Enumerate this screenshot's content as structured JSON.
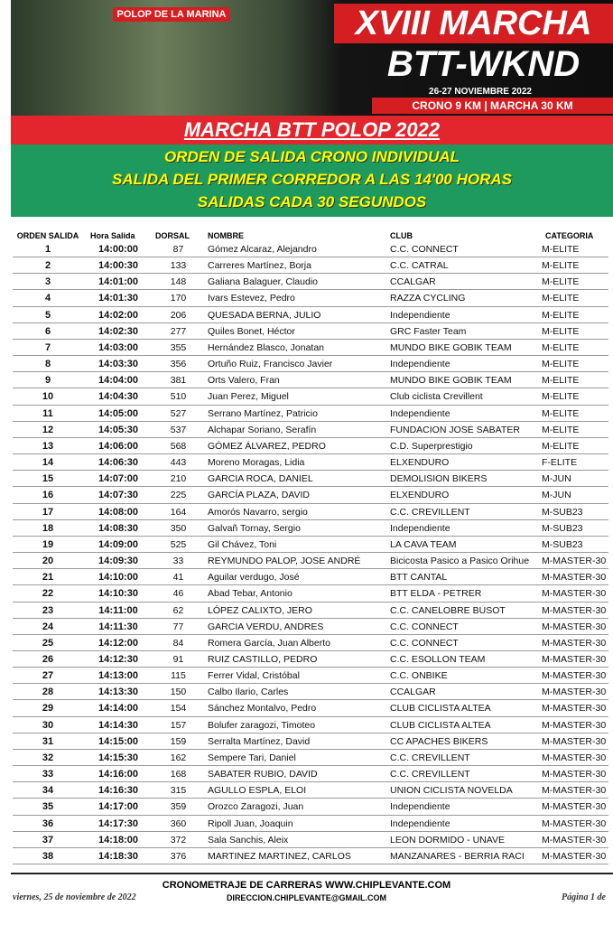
{
  "banner": {
    "place": "POLOP DE LA MARINA",
    "line1": "XVIII MARCHA",
    "line2": "BTT-WKND",
    "dates": "26-27 NOVIEMBRE 2022",
    "distances": "CRONO 9 KM | MARCHA 30 KM"
  },
  "title": "MARCHA BTT POLOP 2022",
  "subtitle": [
    "ORDEN DE SALIDA CRONO INDIVIDUAL",
    "SALIDA DEL PRIMER CORREDOR A LAS 14'00 HORAS",
    "SALIDAS CADA 30 SEGUNDOS"
  ],
  "table": {
    "columns": [
      "ORDEN SALIDA",
      "Hora Salida",
      "DORSAL",
      "NOMBRE",
      "CLUB",
      "CATEGORIA"
    ],
    "rows": [
      [
        "1",
        "14:00:00",
        "87",
        "Gómez Alcaraz, Alejandro",
        "C.C. CONNECT",
        "M-ELITE"
      ],
      [
        "2",
        "14:00:30",
        "133",
        "Carreres Martínez, Borja",
        "C.C. CATRAL",
        "M-ELITE"
      ],
      [
        "3",
        "14:01:00",
        "148",
        "Galiana Balaguer, Claudio",
        "CCALGAR",
        "M-ELITE"
      ],
      [
        "4",
        "14:01:30",
        "170",
        "Ivars Estevez, Pedro",
        "RAZZA CYCLING",
        "M-ELITE"
      ],
      [
        "5",
        "14:02:00",
        "206",
        "QUESADA BERNA, JULIO",
        "Independiente",
        "M-ELITE"
      ],
      [
        "6",
        "14:02:30",
        "277",
        "Quiles Bonet, Héctor",
        "GRC Faster Team",
        "M-ELITE"
      ],
      [
        "7",
        "14:03:00",
        "355",
        "Hernández Blasco, Jonatan",
        "MUNDO BIKE GOBIK TEAM",
        "M-ELITE"
      ],
      [
        "8",
        "14:03:30",
        "356",
        "Ortuño Ruiz, Francisco Javier",
        "Independiente",
        "M-ELITE"
      ],
      [
        "9",
        "14:04:00",
        "381",
        "Orts Valero, Fran",
        "MUNDO BIKE GOBIK TEAM",
        "M-ELITE"
      ],
      [
        "10",
        "14:04:30",
        "510",
        "Juan Perez, Miguel",
        "Club ciclista Crevillent",
        "M-ELITE"
      ],
      [
        "11",
        "14:05:00",
        "527",
        "Serrano Martínez, Patricio",
        "Independiente",
        "M-ELITE"
      ],
      [
        "12",
        "14:05:30",
        "537",
        "Alchapar Soriano, Serafín",
        "FUNDACION JOSE SABATER",
        "M-ELITE"
      ],
      [
        "13",
        "14:06:00",
        "568",
        "GÓMEZ ÁLVAREZ, PEDRO",
        "C.D. Superprestigio",
        "M-ELITE"
      ],
      [
        "14",
        "14:06:30",
        "443",
        "Moreno Moragas, Lidia",
        "ELXENDURO",
        "F-ELITE"
      ],
      [
        "15",
        "14:07:00",
        "210",
        "GARCIA ROCA, DANIEL",
        "DEMOLISION BIKERS",
        "M-JUN"
      ],
      [
        "16",
        "14:07:30",
        "225",
        "GARCÍA PLAZA, DAVID",
        "ELXENDURO",
        "M-JUN"
      ],
      [
        "17",
        "14:08:00",
        "164",
        "Amorós Navarro, sergio",
        "C.C. CREVILLENT",
        "M-SUB23"
      ],
      [
        "18",
        "14:08:30",
        "350",
        "Galvañ Tornay, Sergio",
        "Independiente",
        "M-SUB23"
      ],
      [
        "19",
        "14:09:00",
        "525",
        "Gil Chávez, Toni",
        "LA CAVA TEAM",
        "M-SUB23"
      ],
      [
        "20",
        "14:09:30",
        "33",
        "REYMUNDO PALOP, JOSE ANDRÉ",
        "Bicicosta Pasico a Pasico Orihue",
        "M-MASTER-30"
      ],
      [
        "21",
        "14:10:00",
        "41",
        "Aguilar verdugo, José",
        "BTT CANTAL",
        "M-MASTER-30"
      ],
      [
        "22",
        "14:10:30",
        "46",
        "Abad Tebar, Antonio",
        "BTT ELDA - PETRER",
        "M-MASTER-30"
      ],
      [
        "23",
        "14:11:00",
        "62",
        "LÓPEZ CALIXTO, JERO",
        "C.C. CANELOBRE BUSOT",
        "M-MASTER-30"
      ],
      [
        "24",
        "14:11:30",
        "77",
        "GARCIA VERDU, ANDRES",
        "C.C. CONNECT",
        "M-MASTER-30"
      ],
      [
        "25",
        "14:12:00",
        "84",
        "Romera García, Juan Alberto",
        "C.C. CONNECT",
        "M-MASTER-30"
      ],
      [
        "26",
        "14:12:30",
        "91",
        "RUIZ CASTILLO, PEDRO",
        "C.C. ESOLLON TEAM",
        "M-MASTER-30"
      ],
      [
        "27",
        "14:13:00",
        "115",
        "Ferrer Vidal, Cristóbal",
        "C.C. ONBIKE",
        "M-MASTER-30"
      ],
      [
        "28",
        "14:13:30",
        "150",
        "Calbo Ilario, Carles",
        "CCALGAR",
        "M-MASTER-30"
      ],
      [
        "29",
        "14:14:00",
        "154",
        "Sánchez Montalvo, Pedro",
        "CLUB CICLISTA ALTEA",
        "M-MASTER-30"
      ],
      [
        "30",
        "14:14:30",
        "157",
        "Bolufer zaragozi, Timoteo",
        "CLUB CICLISTA ALTEA",
        "M-MASTER-30"
      ],
      [
        "31",
        "14:15:00",
        "159",
        "Serralta Martínez, David",
        "CC APACHES BIKERS",
        "M-MASTER-30"
      ],
      [
        "32",
        "14:15:30",
        "162",
        "Sempere Tari, Daniel",
        "C.C. CREVILLENT",
        "M-MASTER-30"
      ],
      [
        "33",
        "14:16:00",
        "168",
        "SABATER RUBIO, DAVID",
        "C.C. CREVILLENT",
        "M-MASTER-30"
      ],
      [
        "34",
        "14:16:30",
        "315",
        "AGULLO ESPLA, ELOI",
        "UNION CICLISTA NOVELDA",
        "M-MASTER-30"
      ],
      [
        "35",
        "14:17:00",
        "359",
        "Orozco Zaragozi, Juan",
        "Independiente",
        "M-MASTER-30"
      ],
      [
        "36",
        "14:17:30",
        "360",
        "Ripoll Juan, Joaquin",
        "Independiente",
        "M-MASTER-30"
      ],
      [
        "37",
        "14:18:00",
        "372",
        "Sala Sanchis, Aleix",
        "LEON DORMIDO - UNAVE",
        "M-MASTER-30"
      ],
      [
        "38",
        "14:18:30",
        "376",
        "MARTINEZ MARTINEZ, CARLOS",
        "MANZANARES - BERRIA RACI",
        "M-MASTER-30"
      ]
    ]
  },
  "footer": {
    "timing": "CRONOMETRAJE DE CARRERAS WWW.CHIPLEVANTE.COM",
    "email": "DIRECCION.CHIPLEVANTE@GMAIL.COM",
    "date": "viernes, 25 de noviembre de 2022",
    "page": "Página 1 de"
  }
}
